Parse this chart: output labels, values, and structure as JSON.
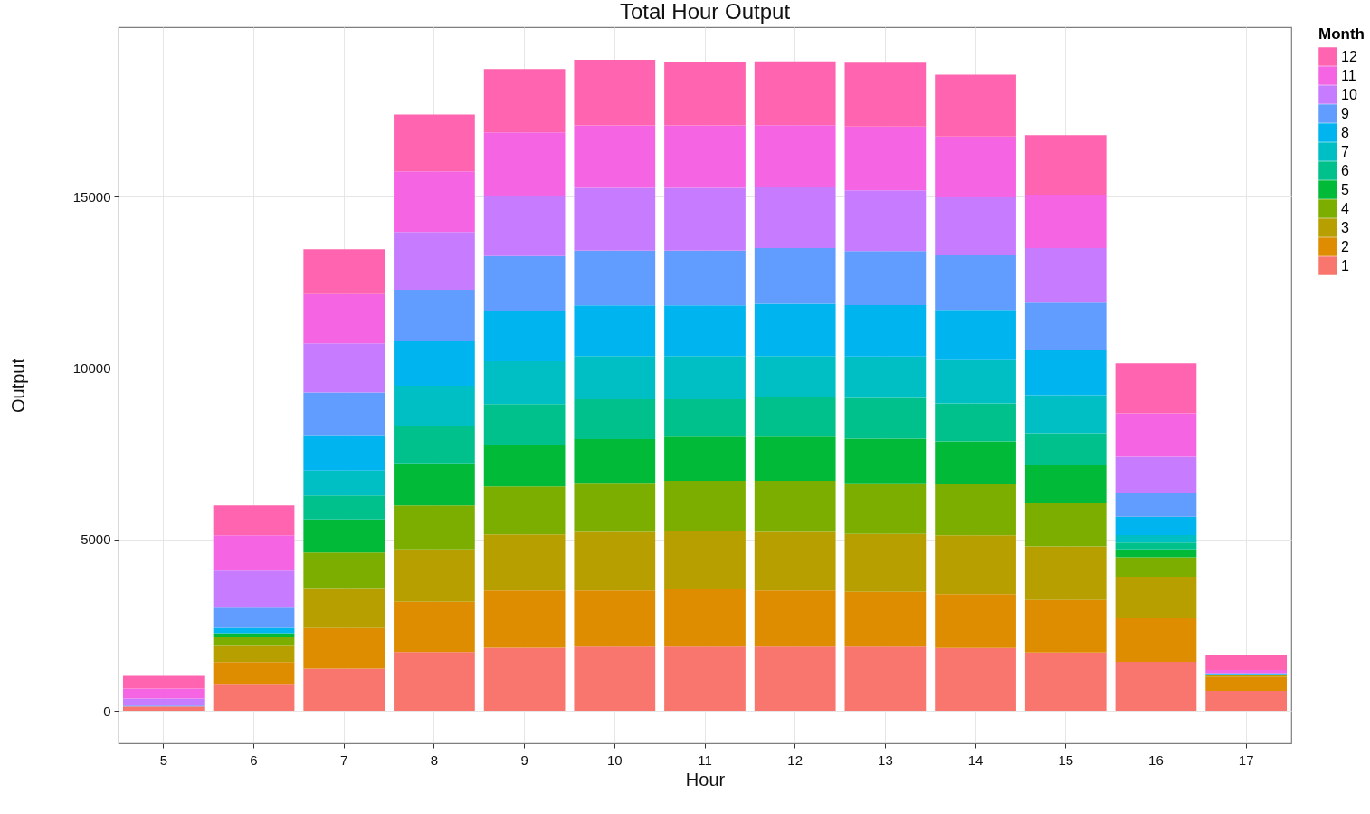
{
  "chart_data": {
    "type": "bar",
    "title": "Total Hour Output",
    "xlabel": "Hour",
    "ylabel": "Output",
    "legend_title": "Month",
    "legend": "right",
    "stacked": true,
    "grid": true,
    "categories": [
      "5",
      "6",
      "7",
      "8",
      "9",
      "10",
      "11",
      "12",
      "13",
      "14",
      "15",
      "16",
      "17"
    ],
    "ylim": [
      -950,
      19950
    ],
    "yticks": [
      0,
      5000,
      10000,
      15000
    ],
    "series": [
      {
        "name": "1",
        "color": "#f8766d",
        "values": [
          130,
          790,
          1230,
          1710,
          1840,
          1870,
          1870,
          1870,
          1870,
          1830,
          1700,
          1430,
          580
        ]
      },
      {
        "name": "2",
        "color": "#de8c00",
        "values": [
          0,
          630,
          1180,
          1470,
          1670,
          1640,
          1670,
          1640,
          1600,
          1570,
          1530,
          1270,
          420
        ]
      },
      {
        "name": "3",
        "color": "#b79f00",
        "values": [
          0,
          500,
          1170,
          1530,
          1640,
          1710,
          1720,
          1710,
          1690,
          1720,
          1570,
          1210,
          60
        ]
      },
      {
        "name": "4",
        "color": "#7cae00",
        "values": [
          0,
          240,
          1040,
          1280,
          1400,
          1430,
          1450,
          1490,
          1480,
          1490,
          1270,
          570,
          0
        ]
      },
      {
        "name": "5",
        "color": "#00ba38",
        "values": [
          0,
          100,
          960,
          1230,
          1210,
          1280,
          1290,
          1290,
          1300,
          1250,
          1090,
          230,
          0
        ]
      },
      {
        "name": "6",
        "color": "#00c08b",
        "values": [
          0,
          0,
          700,
          1090,
          1190,
          1160,
          1090,
          1140,
          1190,
          1110,
          940,
          200,
          0
        ]
      },
      {
        "name": "7",
        "color": "#00bfc4",
        "values": [
          0,
          0,
          730,
          1180,
          1250,
          1260,
          1260,
          1210,
          1210,
          1260,
          1110,
          220,
          0
        ]
      },
      {
        "name": "8",
        "color": "#00b4f0",
        "values": [
          0,
          160,
          1040,
          1290,
          1470,
          1480,
          1480,
          1530,
          1500,
          1470,
          1320,
          530,
          20
        ]
      },
      {
        "name": "9",
        "color": "#619cff",
        "values": [
          20,
          610,
          1240,
          1510,
          1600,
          1600,
          1600,
          1620,
          1580,
          1590,
          1380,
          690,
          20
        ]
      },
      {
        "name": "10",
        "color": "#c77cff",
        "values": [
          210,
          1060,
          1430,
          1680,
          1760,
          1830,
          1830,
          1770,
          1770,
          1690,
          1590,
          1060,
          null
        ]
      },
      {
        "name": "11",
        "color": "#f564e3",
        "values": [
          290,
          1030,
          1440,
          1770,
          1850,
          1820,
          1820,
          1820,
          1860,
          1780,
          1560,
          1270,
          90
        ]
      },
      {
        "name": "12",
        "color": "#ff64b0",
        "values": [
          370,
          870,
          1310,
          1660,
          1850,
          1920,
          1860,
          1860,
          1860,
          1800,
          1740,
          1460,
          450
        ]
      }
    ]
  }
}
